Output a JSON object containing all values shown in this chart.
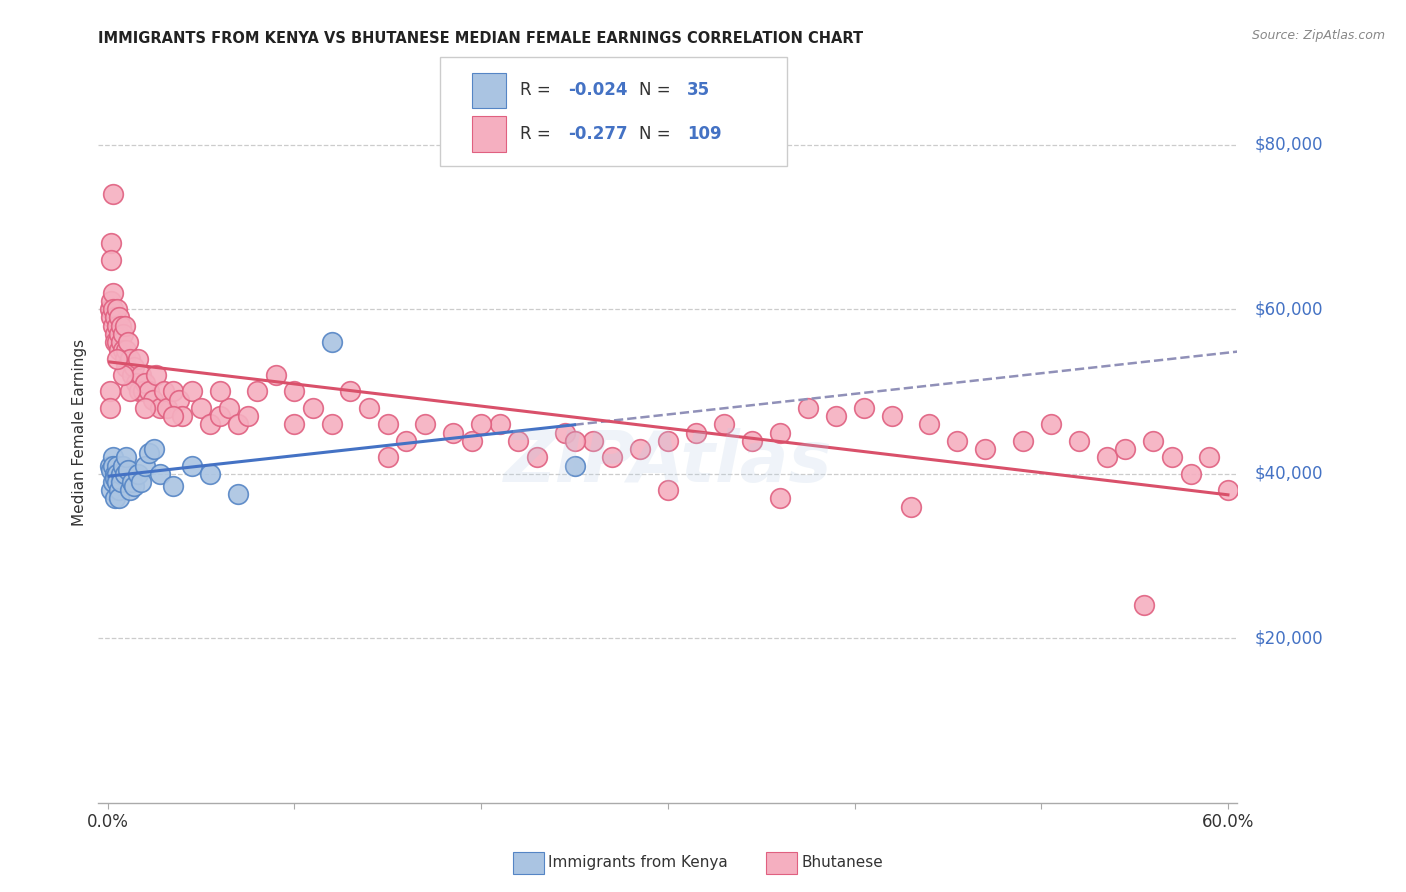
{
  "title": "IMMIGRANTS FROM KENYA VS BHUTANESE MEDIAN FEMALE EARNINGS CORRELATION CHART",
  "source": "Source: ZipAtlas.com",
  "ylabel": "Median Female Earnings",
  "kenya_color": "#aac4e2",
  "bhutan_color": "#f5afc0",
  "kenya_edge_color": "#5585c5",
  "bhutan_edge_color": "#e06080",
  "kenya_line_color": "#4472c4",
  "bhutan_line_color": "#d9506a",
  "dashed_line_color": "#9090b8",
  "watermark": "ZIPAtlas",
  "ylim": [
    0,
    90000
  ],
  "xlim": [
    -0.005,
    0.605
  ],
  "kenya_x": [
    0.001,
    0.002,
    0.002,
    0.003,
    0.003,
    0.003,
    0.004,
    0.004,
    0.004,
    0.005,
    0.005,
    0.005,
    0.006,
    0.006,
    0.007,
    0.007,
    0.008,
    0.009,
    0.01,
    0.011,
    0.012,
    0.013,
    0.014,
    0.016,
    0.018,
    0.02,
    0.022,
    0.025,
    0.028,
    0.035,
    0.045,
    0.055,
    0.07,
    0.12,
    0.25
  ],
  "kenya_y": [
    41000,
    40500,
    38000,
    42000,
    41000,
    39000,
    40000,
    39500,
    37000,
    41000,
    40000,
    39000,
    38000,
    37000,
    40000,
    39000,
    41000,
    40000,
    42000,
    40500,
    38000,
    39000,
    38500,
    40000,
    39000,
    41000,
    42500,
    43000,
    40000,
    38500,
    41000,
    40000,
    37500,
    56000,
    41000
  ],
  "bhutan_x": [
    0.001,
    0.002,
    0.002,
    0.003,
    0.003,
    0.003,
    0.004,
    0.004,
    0.004,
    0.005,
    0.005,
    0.005,
    0.006,
    0.006,
    0.006,
    0.007,
    0.007,
    0.008,
    0.008,
    0.009,
    0.009,
    0.01,
    0.01,
    0.011,
    0.012,
    0.013,
    0.014,
    0.015,
    0.016,
    0.017,
    0.018,
    0.019,
    0.02,
    0.022,
    0.024,
    0.026,
    0.028,
    0.03,
    0.032,
    0.035,
    0.038,
    0.04,
    0.045,
    0.05,
    0.055,
    0.06,
    0.065,
    0.07,
    0.075,
    0.08,
    0.09,
    0.1,
    0.11,
    0.12,
    0.13,
    0.14,
    0.15,
    0.16,
    0.17,
    0.185,
    0.195,
    0.21,
    0.22,
    0.23,
    0.245,
    0.26,
    0.27,
    0.285,
    0.3,
    0.315,
    0.33,
    0.345,
    0.36,
    0.375,
    0.39,
    0.405,
    0.42,
    0.44,
    0.455,
    0.47,
    0.49,
    0.505,
    0.52,
    0.535,
    0.545,
    0.56,
    0.57,
    0.58,
    0.59,
    0.6,
    0.555,
    0.43,
    0.36,
    0.3,
    0.25,
    0.2,
    0.15,
    0.1,
    0.06,
    0.035,
    0.02,
    0.012,
    0.008,
    0.005,
    0.003,
    0.002,
    0.002,
    0.001,
    0.001
  ],
  "bhutan_y": [
    60000,
    61000,
    59000,
    62000,
    60000,
    58000,
    59000,
    57000,
    56000,
    60000,
    58000,
    56000,
    55000,
    59000,
    57000,
    58000,
    56000,
    57000,
    55000,
    58000,
    54000,
    55000,
    53000,
    56000,
    54000,
    52000,
    53000,
    51000,
    54000,
    50000,
    52000,
    50000,
    51000,
    50000,
    49000,
    52000,
    48000,
    50000,
    48000,
    50000,
    49000,
    47000,
    50000,
    48000,
    46000,
    47000,
    48000,
    46000,
    47000,
    50000,
    52000,
    50000,
    48000,
    46000,
    50000,
    48000,
    46000,
    44000,
    46000,
    45000,
    44000,
    46000,
    44000,
    42000,
    45000,
    44000,
    42000,
    43000,
    44000,
    45000,
    46000,
    44000,
    45000,
    48000,
    47000,
    48000,
    47000,
    46000,
    44000,
    43000,
    44000,
    46000,
    44000,
    42000,
    43000,
    44000,
    42000,
    40000,
    42000,
    38000,
    24000,
    36000,
    37000,
    38000,
    44000,
    46000,
    42000,
    46000,
    50000,
    47000,
    48000,
    50000,
    52000,
    54000,
    74000,
    68000,
    66000,
    50000,
    48000
  ]
}
